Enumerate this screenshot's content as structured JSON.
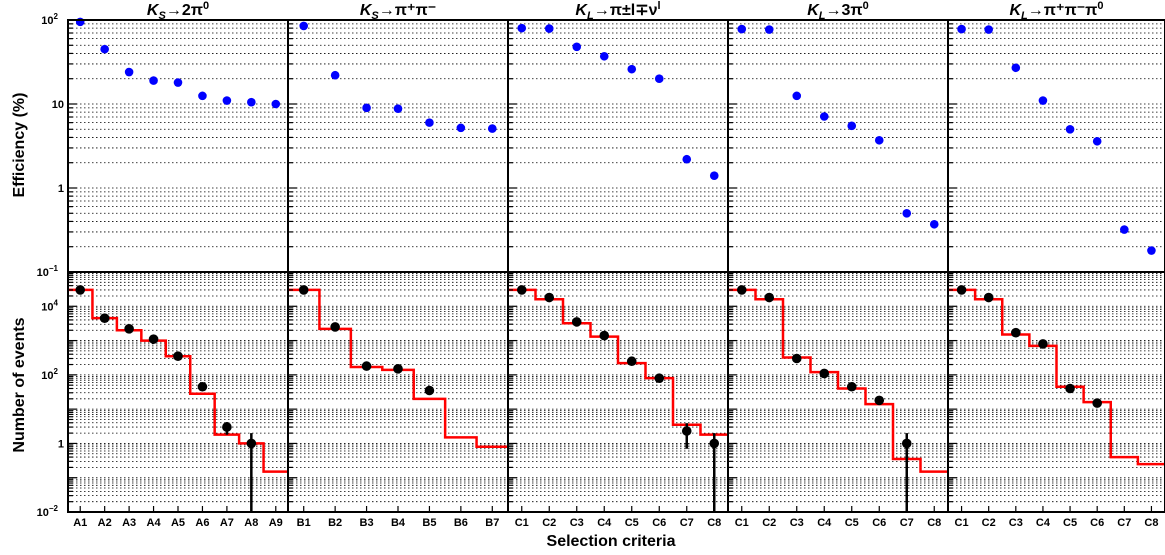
{
  "chart_data": {
    "type": "scatter",
    "xlabel": "Selection criteria",
    "y_axes": {
      "top": {
        "label": "Efficiency (%)",
        "scale": "log",
        "ylim": [
          0.1,
          100
        ],
        "tick_labels": [
          "10^-1",
          "1",
          "10",
          "10^2"
        ]
      },
      "bottom": {
        "label": "Number of events",
        "scale": "log",
        "ylim": [
          0.01,
          100000
        ],
        "tick_labels": [
          "10^-2",
          "1",
          "10^2",
          "10^4"
        ]
      }
    },
    "grid": true,
    "colors": {
      "efficiency_points": "#0000ff",
      "data_points": "#000000",
      "mc_histogram": "#ff0000"
    },
    "panels": [
      {
        "title": {
          "main": "K",
          "sub": "S",
          "rest": "→2π",
          "sup": "0"
        },
        "categories": [
          "A1",
          "A2",
          "A3",
          "A4",
          "A5",
          "A6",
          "A7",
          "A8",
          "A9"
        ],
        "efficiency": [
          95,
          45,
          24,
          19,
          18,
          12.5,
          11,
          10.5,
          10
        ],
        "events": [
          30000,
          4500,
          2200,
          1100,
          350,
          45,
          3,
          1,
          null
        ],
        "event_errors": [
          0,
          0,
          0,
          0,
          0,
          0,
          1.2,
          1,
          0
        ],
        "mc_histogram": [
          30000,
          4500,
          2000,
          1000,
          350,
          28,
          1.8,
          1,
          0.15
        ]
      },
      {
        "title": {
          "main": "K",
          "sub": "S",
          "rest": "→π⁺π⁻",
          "sup": ""
        },
        "categories": [
          "B1",
          "B2",
          "B3",
          "B4",
          "B5",
          "B6",
          "B7"
        ],
        "efficiency": [
          85,
          22,
          9,
          8.8,
          6,
          5.2,
          5.1
        ],
        "events": [
          30000,
          2500,
          180,
          150,
          35,
          null,
          null
        ],
        "event_errors": [
          0,
          0,
          0,
          0,
          0,
          0,
          0
        ],
        "mc_histogram": [
          30000,
          2200,
          170,
          140,
          20,
          1.5,
          0.8
        ]
      },
      {
        "title": {
          "main": "K",
          "sub": "L",
          "rest": "→π±l∓ν",
          "sup": "l"
        },
        "categories": [
          "C1",
          "C2",
          "C3",
          "C4",
          "C5",
          "C6",
          "C7",
          "C8"
        ],
        "efficiency": [
          80,
          79,
          48,
          37,
          26,
          20,
          2.2,
          1.4
        ],
        "events": [
          30000,
          18000,
          3500,
          1400,
          250,
          80,
          2.3,
          1
        ],
        "event_errors": [
          0,
          0,
          0,
          0,
          0,
          0,
          1.6,
          1
        ],
        "mc_histogram": [
          30000,
          16000,
          3200,
          1300,
          220,
          80,
          3.5,
          1.8
        ]
      },
      {
        "title": {
          "main": "K",
          "sub": "L",
          "rest": "→3π",
          "sup": "0"
        },
        "categories": [
          "C1",
          "C2",
          "C3",
          "C4",
          "C5",
          "C6",
          "C7",
          "C8"
        ],
        "efficiency": [
          78,
          77,
          12.5,
          7.1,
          5.5,
          3.7,
          0.5,
          0.37
        ],
        "events": [
          30000,
          18000,
          300,
          110,
          45,
          18,
          1,
          null
        ],
        "event_errors": [
          0,
          0,
          0,
          0,
          0,
          0,
          1,
          0
        ],
        "mc_histogram": [
          30000,
          16000,
          320,
          120,
          40,
          14,
          0.35,
          0.15
        ]
      },
      {
        "title": {
          "main": "K",
          "sub": "L",
          "rest": "→π⁺π⁻π",
          "sup": "0"
        },
        "categories": [
          "C1",
          "C2",
          "C3",
          "C4",
          "C5",
          "C6",
          "C7",
          "C8"
        ],
        "efficiency": [
          78,
          77,
          27,
          11,
          5,
          3.6,
          0.32,
          0.18
        ],
        "events": [
          30000,
          18000,
          1700,
          800,
          40,
          15,
          null,
          null
        ],
        "event_errors": [
          0,
          0,
          0,
          0,
          0,
          0,
          0,
          0
        ],
        "mc_histogram": [
          30000,
          16000,
          1500,
          700,
          45,
          16,
          0.4,
          0.25
        ]
      }
    ]
  }
}
